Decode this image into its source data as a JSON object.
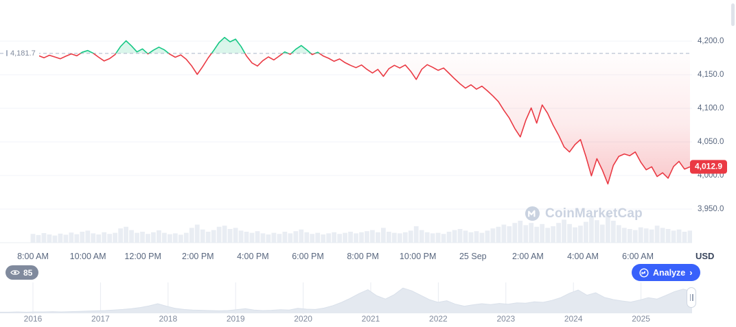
{
  "ui": {
    "open_label": "4,181.7",
    "price_badge": "4,012.9",
    "currency": "USD",
    "watchers": "85",
    "analyze_label": "Analyze",
    "analyze_chevron": "›",
    "watermark": "CoinMarketCap"
  },
  "colors": {
    "up": "#16c784",
    "down": "#ea3943",
    "badge_bg": "#ea3943",
    "analyze_bg": "#3861fb",
    "axis_text": "#58667e",
    "muted_text": "#808a9d",
    "watermark_text": "#cbd3e1",
    "volume_bar": "#e9edf3",
    "mini_area": "#e4e9f0",
    "baseline_dash": "#a9b3c6"
  },
  "chart_data": {
    "type": "line",
    "title": "",
    "xlabel": "",
    "ylabel": "USD",
    "x_labels": [
      "8:00 AM",
      "10:00 AM",
      "12:00 PM",
      "2:00 PM",
      "4:00 PM",
      "6:00 PM",
      "8:00 PM",
      "10:00 PM",
      "25 Sep",
      "2:00 AM",
      "4:00 AM",
      "6:00 AM"
    ],
    "y_tick_labels": [
      "4,200.0",
      "4,150.0",
      "4,100.0",
      "4,050.0",
      "4,000.0",
      "3,950.0"
    ],
    "y_tick_values": [
      4200,
      4150,
      4100,
      4050,
      4000,
      3950
    ],
    "ylim": [
      3930,
      4220
    ],
    "open": 4181.7,
    "close": 4012.9,
    "prices": [
      4181.7,
      4178.5,
      4175.2,
      4179.0,
      4176.4,
      4173.8,
      4177.5,
      4181.0,
      4178.2,
      4183.5,
      4186.0,
      4182.0,
      4176.0,
      4170.5,
      4174.0,
      4180.0,
      4192.0,
      4200.5,
      4193.0,
      4184.0,
      4188.5,
      4181.0,
      4186.5,
      4191.0,
      4187.0,
      4180.5,
      4176.0,
      4179.5,
      4173.0,
      4163.0,
      4150.5,
      4162.0,
      4175.0,
      4186.0,
      4198.0,
      4205.5,
      4199.0,
      4203.0,
      4192.0,
      4178.0,
      4167.5,
      4163.0,
      4171.0,
      4176.5,
      4172.0,
      4178.0,
      4184.0,
      4180.5,
      4188.0,
      4193.5,
      4187.0,
      4180.0,
      4183.5,
      4178.0,
      4174.5,
      4170.0,
      4173.5,
      4168.0,
      4164.0,
      4160.5,
      4164.5,
      4158.0,
      4152.5,
      4158.0,
      4147.5,
      4159.0,
      4164.0,
      4160.0,
      4164.5,
      4155.0,
      4143.0,
      4158.0,
      4165.0,
      4161.0,
      4156.5,
      4160.0,
      4152.0,
      4144.0,
      4136.5,
      4130.0,
      4135.0,
      4128.5,
      4133.0,
      4126.0,
      4118.5,
      4110.0,
      4097.0,
      4085.5,
      4070.0,
      4057.5,
      4082.0,
      4100.5,
      4078.0,
      4105.0,
      4092.5,
      4075.0,
      4060.0,
      4042.5,
      4035.0,
      4046.0,
      4053.5,
      4028.0,
      3999.5,
      4025.0,
      4008.0,
      3987.5,
      4015.0,
      4028.5,
      4032.0,
      4029.5,
      4035.0,
      4020.0,
      4008.5,
      4013.0,
      3998.5,
      4004.0,
      3996.0,
      4013.5,
      4021.0,
      4009.5,
      4012.9
    ],
    "volume": [
      0.22,
      0.18,
      0.25,
      0.2,
      0.16,
      0.23,
      0.19,
      0.27,
      0.21,
      0.3,
      0.34,
      0.24,
      0.2,
      0.28,
      0.22,
      0.26,
      0.42,
      0.48,
      0.36,
      0.26,
      0.3,
      0.22,
      0.28,
      0.35,
      0.26,
      0.21,
      0.24,
      0.19,
      0.26,
      0.44,
      0.56,
      0.38,
      0.3,
      0.36,
      0.48,
      0.52,
      0.4,
      0.44,
      0.34,
      0.3,
      0.26,
      0.32,
      0.24,
      0.2,
      0.26,
      0.22,
      0.3,
      0.24,
      0.32,
      0.38,
      0.28,
      0.22,
      0.26,
      0.2,
      0.24,
      0.28,
      0.22,
      0.26,
      0.3,
      0.24,
      0.28,
      0.32,
      0.36,
      0.28,
      0.44,
      0.3,
      0.26,
      0.24,
      0.28,
      0.34,
      0.5,
      0.36,
      0.28,
      0.24,
      0.26,
      0.22,
      0.3,
      0.36,
      0.4,
      0.34,
      0.28,
      0.32,
      0.26,
      0.34,
      0.42,
      0.48,
      0.56,
      0.5,
      0.62,
      0.7,
      0.54,
      0.62,
      0.48,
      0.58,
      0.44,
      0.5,
      0.62,
      0.74,
      0.58,
      0.46,
      0.52,
      0.66,
      0.88,
      0.72,
      0.56,
      0.96,
      0.7,
      0.54,
      0.44,
      0.4,
      0.36,
      0.46,
      0.42,
      0.38,
      0.52,
      0.44,
      0.4,
      0.34,
      0.38,
      0.3,
      0.34
    ],
    "range_selector": {
      "years": [
        "2016",
        "2017",
        "2018",
        "2019",
        "2020",
        "2021",
        "2022",
        "2023",
        "2024",
        "2025"
      ],
      "values": [
        0.04,
        0.04,
        0.05,
        0.04,
        0.05,
        0.05,
        0.06,
        0.05,
        0.06,
        0.07,
        0.08,
        0.09,
        0.1,
        0.12,
        0.14,
        0.17,
        0.21,
        0.27,
        0.35,
        0.26,
        0.18,
        0.14,
        0.12,
        0.11,
        0.1,
        0.09,
        0.1,
        0.13,
        0.17,
        0.12,
        0.1,
        0.11,
        0.13,
        0.12,
        0.18,
        0.15,
        0.14,
        0.19,
        0.28,
        0.4,
        0.55,
        0.72,
        0.86,
        0.64,
        0.52,
        0.68,
        0.92,
        0.82,
        0.66,
        0.5,
        0.4,
        0.46,
        0.33,
        0.26,
        0.31,
        0.35,
        0.32,
        0.36,
        0.33,
        0.38,
        0.37,
        0.42,
        0.4,
        0.47,
        0.57,
        0.73,
        0.85,
        0.66,
        0.75,
        0.58,
        0.5,
        0.45,
        0.41,
        0.48,
        0.57,
        0.52,
        0.65,
        0.79,
        0.88,
        0.8
      ]
    }
  }
}
